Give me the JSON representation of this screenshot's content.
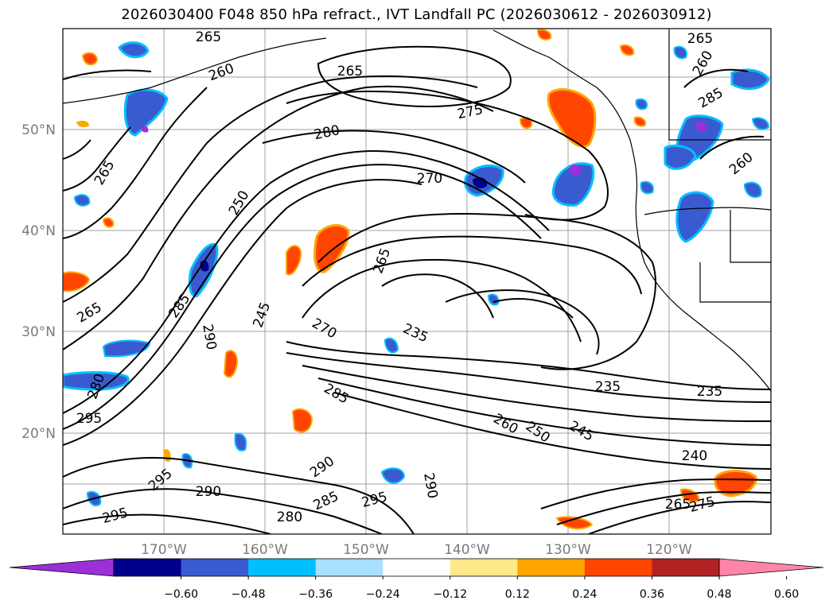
{
  "title": "2026030400 F048 850 hPa refract., IVT Landfall PC (2026030612 - 2026030912)",
  "map": {
    "lat_labels": [
      "50°N",
      "40°N",
      "30°N",
      "20°N"
    ],
    "lon_labels": [
      "170°W",
      "160°W",
      "150°W",
      "140°W",
      "130°W",
      "120°W"
    ],
    "contour_labels": [
      "265",
      "260",
      "265",
      "275",
      "280",
      "260",
      "285",
      "260",
      "265",
      "265",
      "270",
      "250",
      "265",
      "265",
      "285",
      "290",
      "245",
      "270",
      "235",
      "280",
      "295",
      "285",
      "235",
      "235",
      "260",
      "250",
      "245",
      "240",
      "290",
      "295",
      "290",
      "285",
      "295",
      "280",
      "290",
      "295",
      "275",
      "265"
    ]
  },
  "colorbar": {
    "ticks": [
      "−0.60",
      "−0.48",
      "−0.36",
      "−0.24",
      "−0.12",
      "0.12",
      "0.24",
      "0.36",
      "0.48",
      "0.60"
    ],
    "colors": [
      "#9b30d8",
      "#00008b",
      "#3a5bd0",
      "#00bfff",
      "#a8e0ff",
      "#ffffff",
      "#fde98a",
      "#ffa500",
      "#ff4500",
      "#b22222",
      "#ff85a8"
    ]
  }
}
